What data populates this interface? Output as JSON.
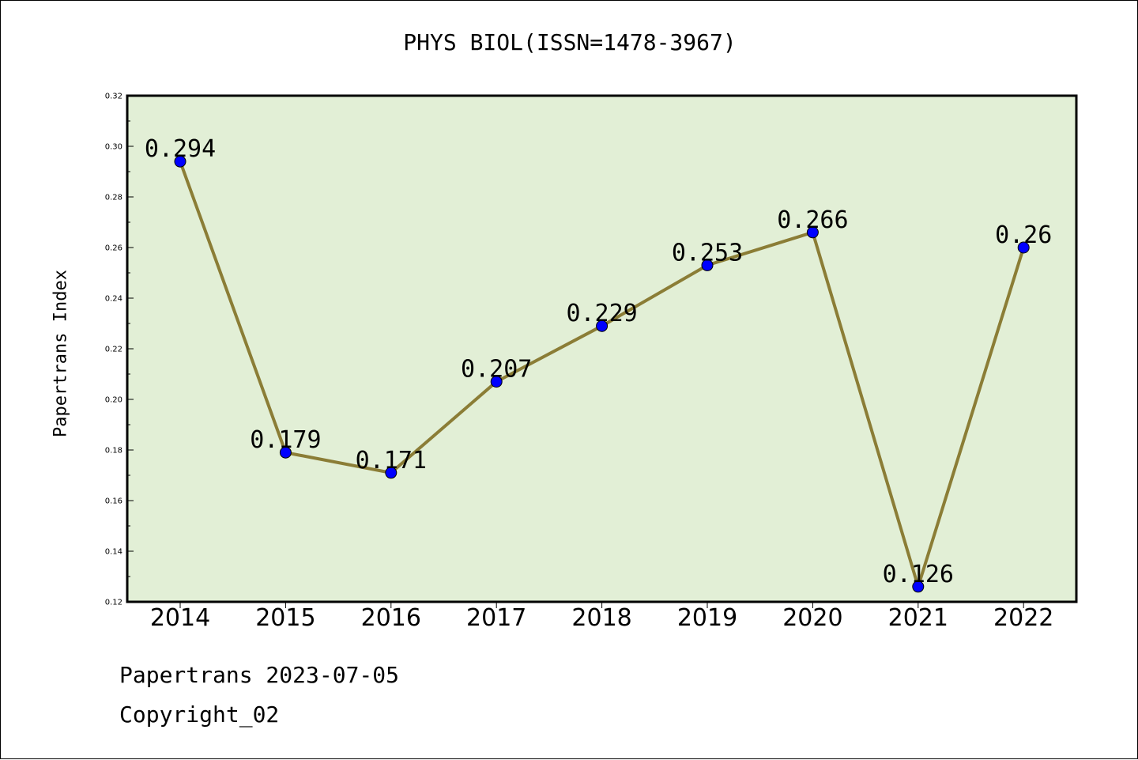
{
  "chart_data": {
    "type": "line",
    "title": "PHYS BIOL(ISSN=1478-3967)",
    "xlabel": "",
    "ylabel": "Papertrans Index",
    "categories": [
      "2014",
      "2015",
      "2016",
      "2017",
      "2018",
      "2019",
      "2020",
      "2021",
      "2022"
    ],
    "series": [
      {
        "values": [
          0.294,
          0.179,
          0.171,
          0.207,
          0.229,
          0.253,
          0.266,
          0.126,
          0.26
        ],
        "data_labels": [
          "0.294",
          "0.179",
          "0.171",
          "0.207",
          "0.229",
          "0.253",
          "0.266",
          "0.126",
          "0.26"
        ],
        "color": "#8b7d36",
        "marker_color": "#0000ff"
      }
    ],
    "ylim": [
      0.12,
      0.32
    ],
    "yticks": [
      "0.12",
      "0.14",
      "0.16",
      "0.18",
      "0.20",
      "0.22",
      "0.24",
      "0.26",
      "0.28",
      "0.30",
      "0.32"
    ],
    "plot_background": "#e2efd6",
    "grid": false,
    "legend": "none"
  },
  "footer": {
    "date_line": "Papertrans 2023-07-05",
    "copyright": "Copyright_02"
  }
}
